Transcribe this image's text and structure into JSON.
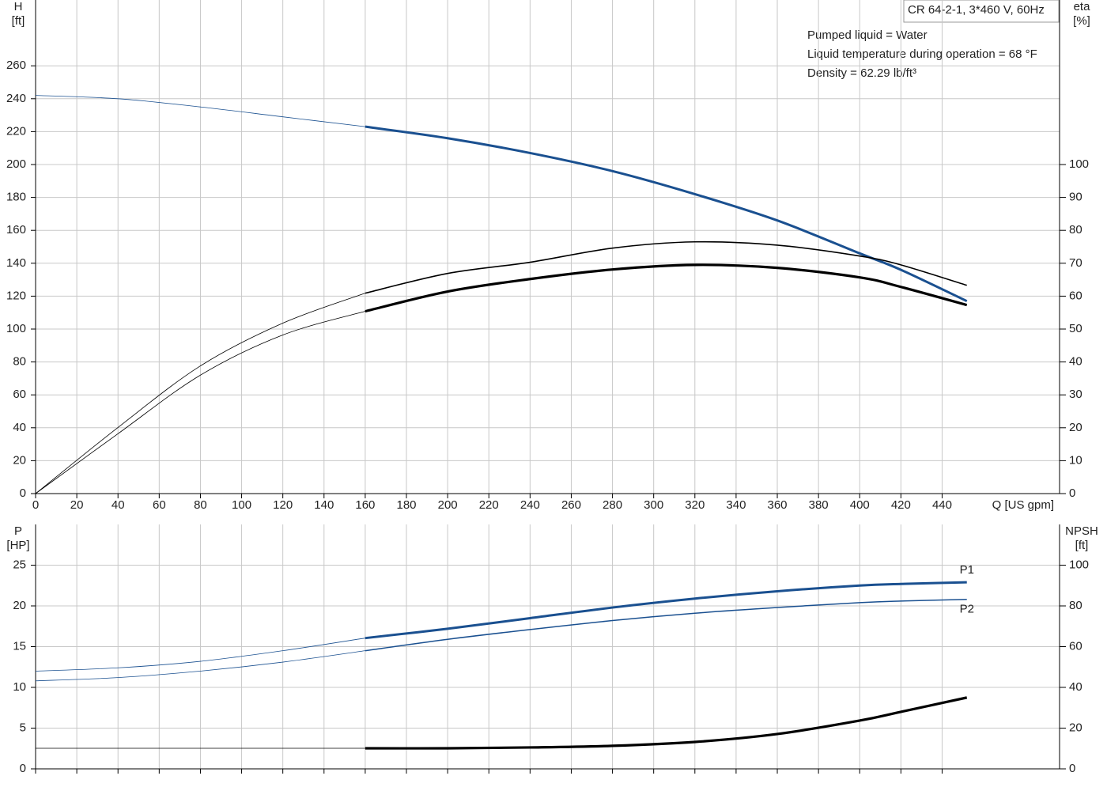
{
  "chart_data": [
    {
      "type": "line",
      "title": "CR 64-2-1, 3*460 V, 60Hz",
      "notes": [
        "Pumped liquid = Water",
        "Liquid temperature during operation = 68 °F",
        "Density = 62.29 lb/ft³"
      ],
      "y_label": [
        "H",
        "[ft]"
      ],
      "y2_label": [
        "eta",
        "[%]"
      ],
      "x_label": "Q [US gpm]",
      "x": [
        0,
        40,
        80,
        120,
        160,
        200,
        240,
        280,
        320,
        360,
        400,
        420,
        452
      ],
      "xlim": [
        0,
        497
      ],
      "xticks": [
        0,
        20,
        40,
        60,
        80,
        100,
        120,
        140,
        160,
        180,
        200,
        220,
        240,
        260,
        280,
        300,
        320,
        340,
        360,
        380,
        400,
        420,
        440
      ],
      "ylim": [
        0,
        300
      ],
      "yticks": [
        0,
        20,
        40,
        60,
        80,
        100,
        120,
        140,
        160,
        180,
        200,
        220,
        240,
        260
      ],
      "y2lim": [
        0,
        150
      ],
      "y2ticks": [
        0,
        10,
        20,
        30,
        40,
        50,
        60,
        70,
        80,
        90,
        100
      ],
      "grid": true,
      "xtick_labels": true,
      "bold_from": 160,
      "series": [
        {
          "color": "#1a5090",
          "line_width": 3,
          "values": [
            242,
            240,
            235,
            229,
            223,
            216,
            207,
            196,
            182,
            166,
            146,
            136,
            117
          ]
        },
        {
          "color": "#000000",
          "line_width": 1.6,
          "axis": "y2",
          "values": [
            0,
            20.1,
            38.8,
            51.8,
            60.9,
            66.9,
            70.3,
            74.6,
            76.5,
            75.5,
            72.2,
            69.5,
            63.3
          ]
        },
        {
          "color": "#000000",
          "line_width": 3.2,
          "axis": "y2",
          "values": [
            0,
            18.2,
            36,
            48.2,
            55.4,
            61.4,
            65.2,
            68.1,
            69.5,
            68.6,
            65.7,
            62.8,
            57.3
          ]
        }
      ]
    },
    {
      "type": "line",
      "y_label": [
        "P",
        "[HP]"
      ],
      "y2_label": [
        "NPSH",
        "[ft]"
      ],
      "x": [
        0,
        40,
        80,
        120,
        160,
        200,
        240,
        280,
        320,
        360,
        400,
        420,
        452
      ],
      "xlim": [
        0,
        497
      ],
      "xticks": [
        0,
        20,
        40,
        60,
        80,
        100,
        120,
        140,
        160,
        180,
        200,
        220,
        240,
        260,
        280,
        300,
        320,
        340,
        360,
        380,
        400,
        420,
        440
      ],
      "ylim": [
        0,
        30
      ],
      "yticks": [
        0,
        5,
        10,
        15,
        20,
        25
      ],
      "y2lim": [
        0,
        120
      ],
      "y2ticks": [
        0,
        20,
        40,
        60,
        80,
        100
      ],
      "grid": true,
      "xtick_labels": false,
      "bold_from": 160,
      "series": [
        {
          "name": "P1",
          "color": "#1a5090",
          "line_width": 3,
          "values": [
            12.0,
            12.4,
            13.2,
            14.5,
            16.05,
            17.2,
            18.5,
            19.8,
            20.9,
            21.8,
            22.5,
            22.7,
            22.9
          ]
        },
        {
          "name": "P2",
          "color": "#1a5090",
          "line_width": 1.5,
          "values": [
            10.8,
            11.2,
            12.0,
            13.1,
            14.5,
            15.9,
            17.1,
            18.2,
            19.1,
            19.8,
            20.4,
            20.6,
            20.8
          ]
        },
        {
          "color": "#000000",
          "line_width": 3.2,
          "axis": "y2",
          "values": [
            10.1,
            10.1,
            10.1,
            10.1,
            10.1,
            10.1,
            10.5,
            11.3,
            13.2,
            17.1,
            23.7,
            28,
            35
          ]
        }
      ]
    }
  ]
}
